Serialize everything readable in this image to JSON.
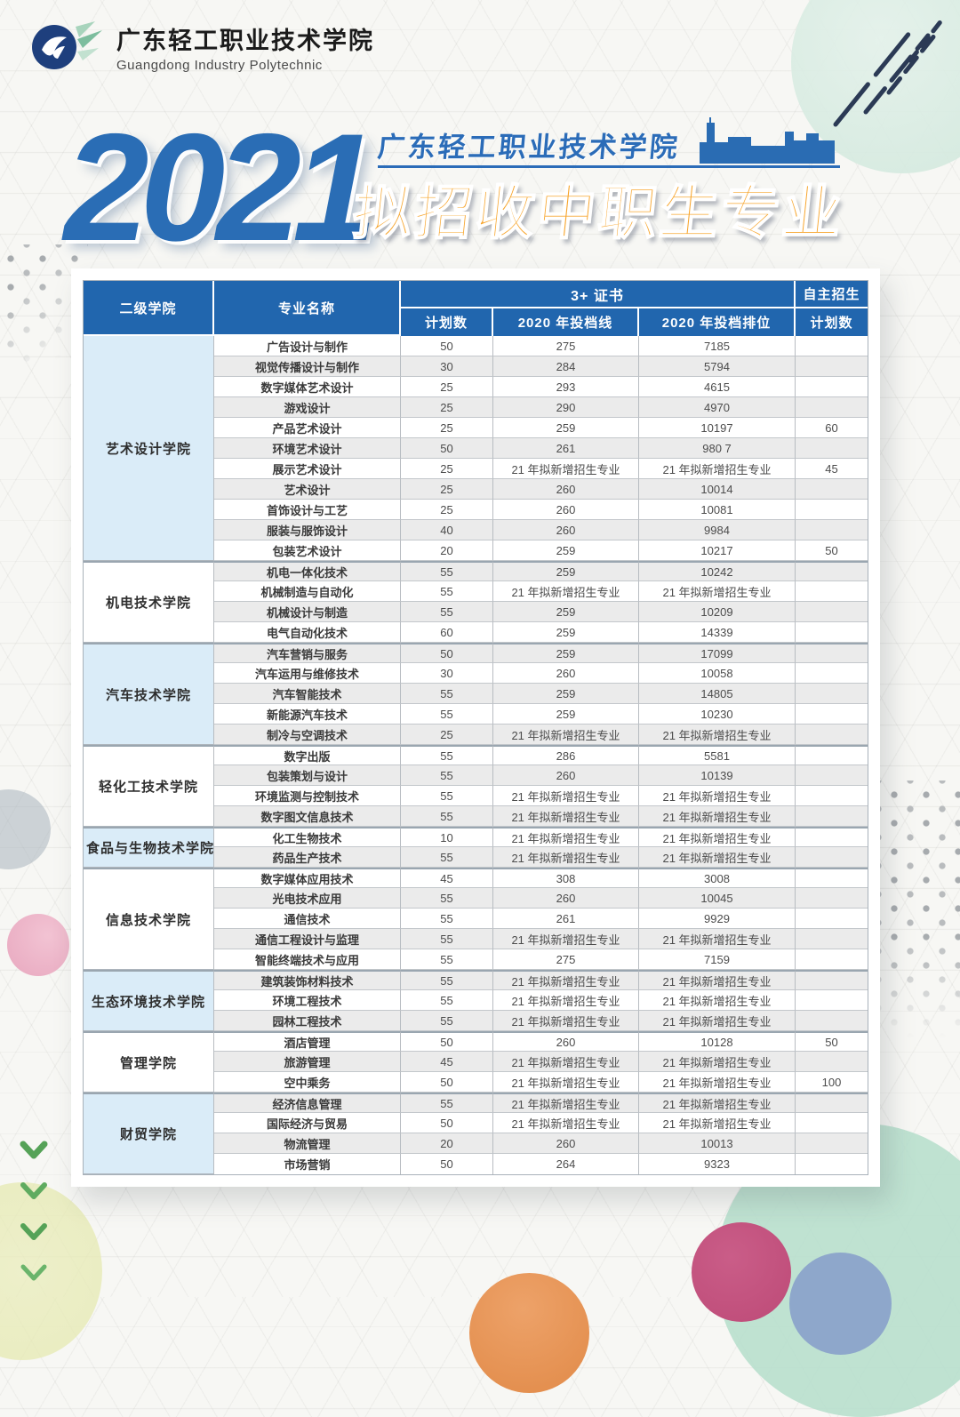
{
  "logo": {
    "name_zh": "广东轻工职业技术学院",
    "name_en": "Guangdong Industry Polytechnic"
  },
  "title": {
    "year": "2021",
    "school": "广东轻工职业技术学院",
    "subtitle": "拟招收中职生专业"
  },
  "colors": {
    "header_blue": "#2166ae",
    "college_cell_blue": "#daecf8",
    "row_alt_gray": "#ebebeb",
    "title_blue": "#2a6db5",
    "title_orange": "#f7a42a"
  },
  "table": {
    "headers": {
      "college": "二级学院",
      "major": "专业名称",
      "cert_group": "3+ 证书",
      "plan": "计划数",
      "line_2020": "2020 年投档线",
      "rank_2020": "2020 年投档排位",
      "self_enroll": "自主招生",
      "self_plan": "计划数"
    },
    "new_major_note": "21 年拟新增招生专业",
    "groups": [
      {
        "college": "艺术设计学院",
        "rows": [
          [
            "广告设计与制作",
            "50",
            "275",
            "7185",
            ""
          ],
          [
            "视觉传播设计与制作",
            "30",
            "284",
            "5794",
            ""
          ],
          [
            "数字媒体艺术设计",
            "25",
            "293",
            "4615",
            ""
          ],
          [
            "游戏设计",
            "25",
            "290",
            "4970",
            ""
          ],
          [
            "产品艺术设计",
            "25",
            "259",
            "10197",
            "60"
          ],
          [
            "环境艺术设计",
            "50",
            "261",
            "980 7",
            ""
          ],
          [
            "展示艺术设计",
            "25",
            "21 年拟新增招生专业",
            "21 年拟新增招生专业",
            "45"
          ],
          [
            "艺术设计",
            "25",
            "260",
            "10014",
            ""
          ],
          [
            "首饰设计与工艺",
            "25",
            "260",
            "10081",
            ""
          ],
          [
            "服装与服饰设计",
            "40",
            "260",
            "9984",
            ""
          ],
          [
            "包装艺术设计",
            "20",
            "259",
            "10217",
            "50"
          ]
        ]
      },
      {
        "college": "机电技术学院",
        "rows": [
          [
            "机电一体化技术",
            "55",
            "259",
            "10242",
            ""
          ],
          [
            "机械制造与自动化",
            "55",
            "21 年拟新增招生专业",
            "21 年拟新增招生专业",
            ""
          ],
          [
            "机械设计与制造",
            "55",
            "259",
            "10209",
            ""
          ],
          [
            "电气自动化技术",
            "60",
            "259",
            "14339",
            ""
          ]
        ]
      },
      {
        "college": "汽车技术学院",
        "rows": [
          [
            "汽车营销与服务",
            "50",
            "259",
            "17099",
            ""
          ],
          [
            "汽车运用与维修技术",
            "30",
            "260",
            "10058",
            ""
          ],
          [
            "汽车智能技术",
            "55",
            "259",
            "14805",
            ""
          ],
          [
            "新能源汽车技术",
            "55",
            "259",
            "10230",
            ""
          ],
          [
            "制冷与空调技术",
            "25",
            "21 年拟新增招生专业",
            "21 年拟新增招生专业",
            ""
          ]
        ]
      },
      {
        "college": "轻化工技术学院",
        "rows": [
          [
            "数字出版",
            "55",
            "286",
            "5581",
            ""
          ],
          [
            "包装策划与设计",
            "55",
            "260",
            "10139",
            ""
          ],
          [
            "环境监测与控制技术",
            "55",
            "21 年拟新增招生专业",
            "21 年拟新增招生专业",
            ""
          ],
          [
            "数字图文信息技术",
            "55",
            "21 年拟新增招生专业",
            "21 年拟新增招生专业",
            ""
          ]
        ]
      },
      {
        "college": "食品与生物技术学院",
        "rows": [
          [
            "化工生物技术",
            "10",
            "21 年拟新增招生专业",
            "21 年拟新增招生专业",
            ""
          ],
          [
            "药品生产技术",
            "55",
            "21 年拟新增招生专业",
            "21 年拟新增招生专业",
            ""
          ]
        ]
      },
      {
        "college": "信息技术学院",
        "rows": [
          [
            "数字媒体应用技术",
            "45",
            "308",
            "3008",
            ""
          ],
          [
            "光电技术应用",
            "55",
            "260",
            "10045",
            ""
          ],
          [
            "通信技术",
            "55",
            "261",
            "9929",
            ""
          ],
          [
            "通信工程设计与监理",
            "55",
            "21 年拟新增招生专业",
            "21 年拟新增招生专业",
            ""
          ],
          [
            "智能终端技术与应用",
            "55",
            "275",
            "7159",
            ""
          ]
        ]
      },
      {
        "college": "生态环境技术学院",
        "rows": [
          [
            "建筑装饰材料技术",
            "55",
            "21 年拟新增招生专业",
            "21 年拟新增招生专业",
            ""
          ],
          [
            "环境工程技术",
            "55",
            "21 年拟新增招生专业",
            "21 年拟新增招生专业",
            ""
          ],
          [
            "园林工程技术",
            "55",
            "21 年拟新增招生专业",
            "21 年拟新增招生专业",
            ""
          ]
        ]
      },
      {
        "college": "管理学院",
        "rows": [
          [
            "酒店管理",
            "50",
            "260",
            "10128",
            "50"
          ],
          [
            "旅游管理",
            "45",
            "21 年拟新增招生专业",
            "21 年拟新增招生专业",
            ""
          ],
          [
            "空中乘务",
            "50",
            "21 年拟新增招生专业",
            "21 年拟新增招生专业",
            "100"
          ]
        ]
      },
      {
        "college": "财贸学院",
        "rows": [
          [
            "经济信息管理",
            "55",
            "21 年拟新增招生专业",
            "21 年拟新增招生专业",
            ""
          ],
          [
            "国际经济与贸易",
            "50",
            "21 年拟新增招生专业",
            "21 年拟新增招生专业",
            ""
          ],
          [
            "物流管理",
            "20",
            "260",
            "10013",
            ""
          ],
          [
            "市场营销",
            "50",
            "264",
            "9323",
            ""
          ]
        ]
      }
    ]
  }
}
